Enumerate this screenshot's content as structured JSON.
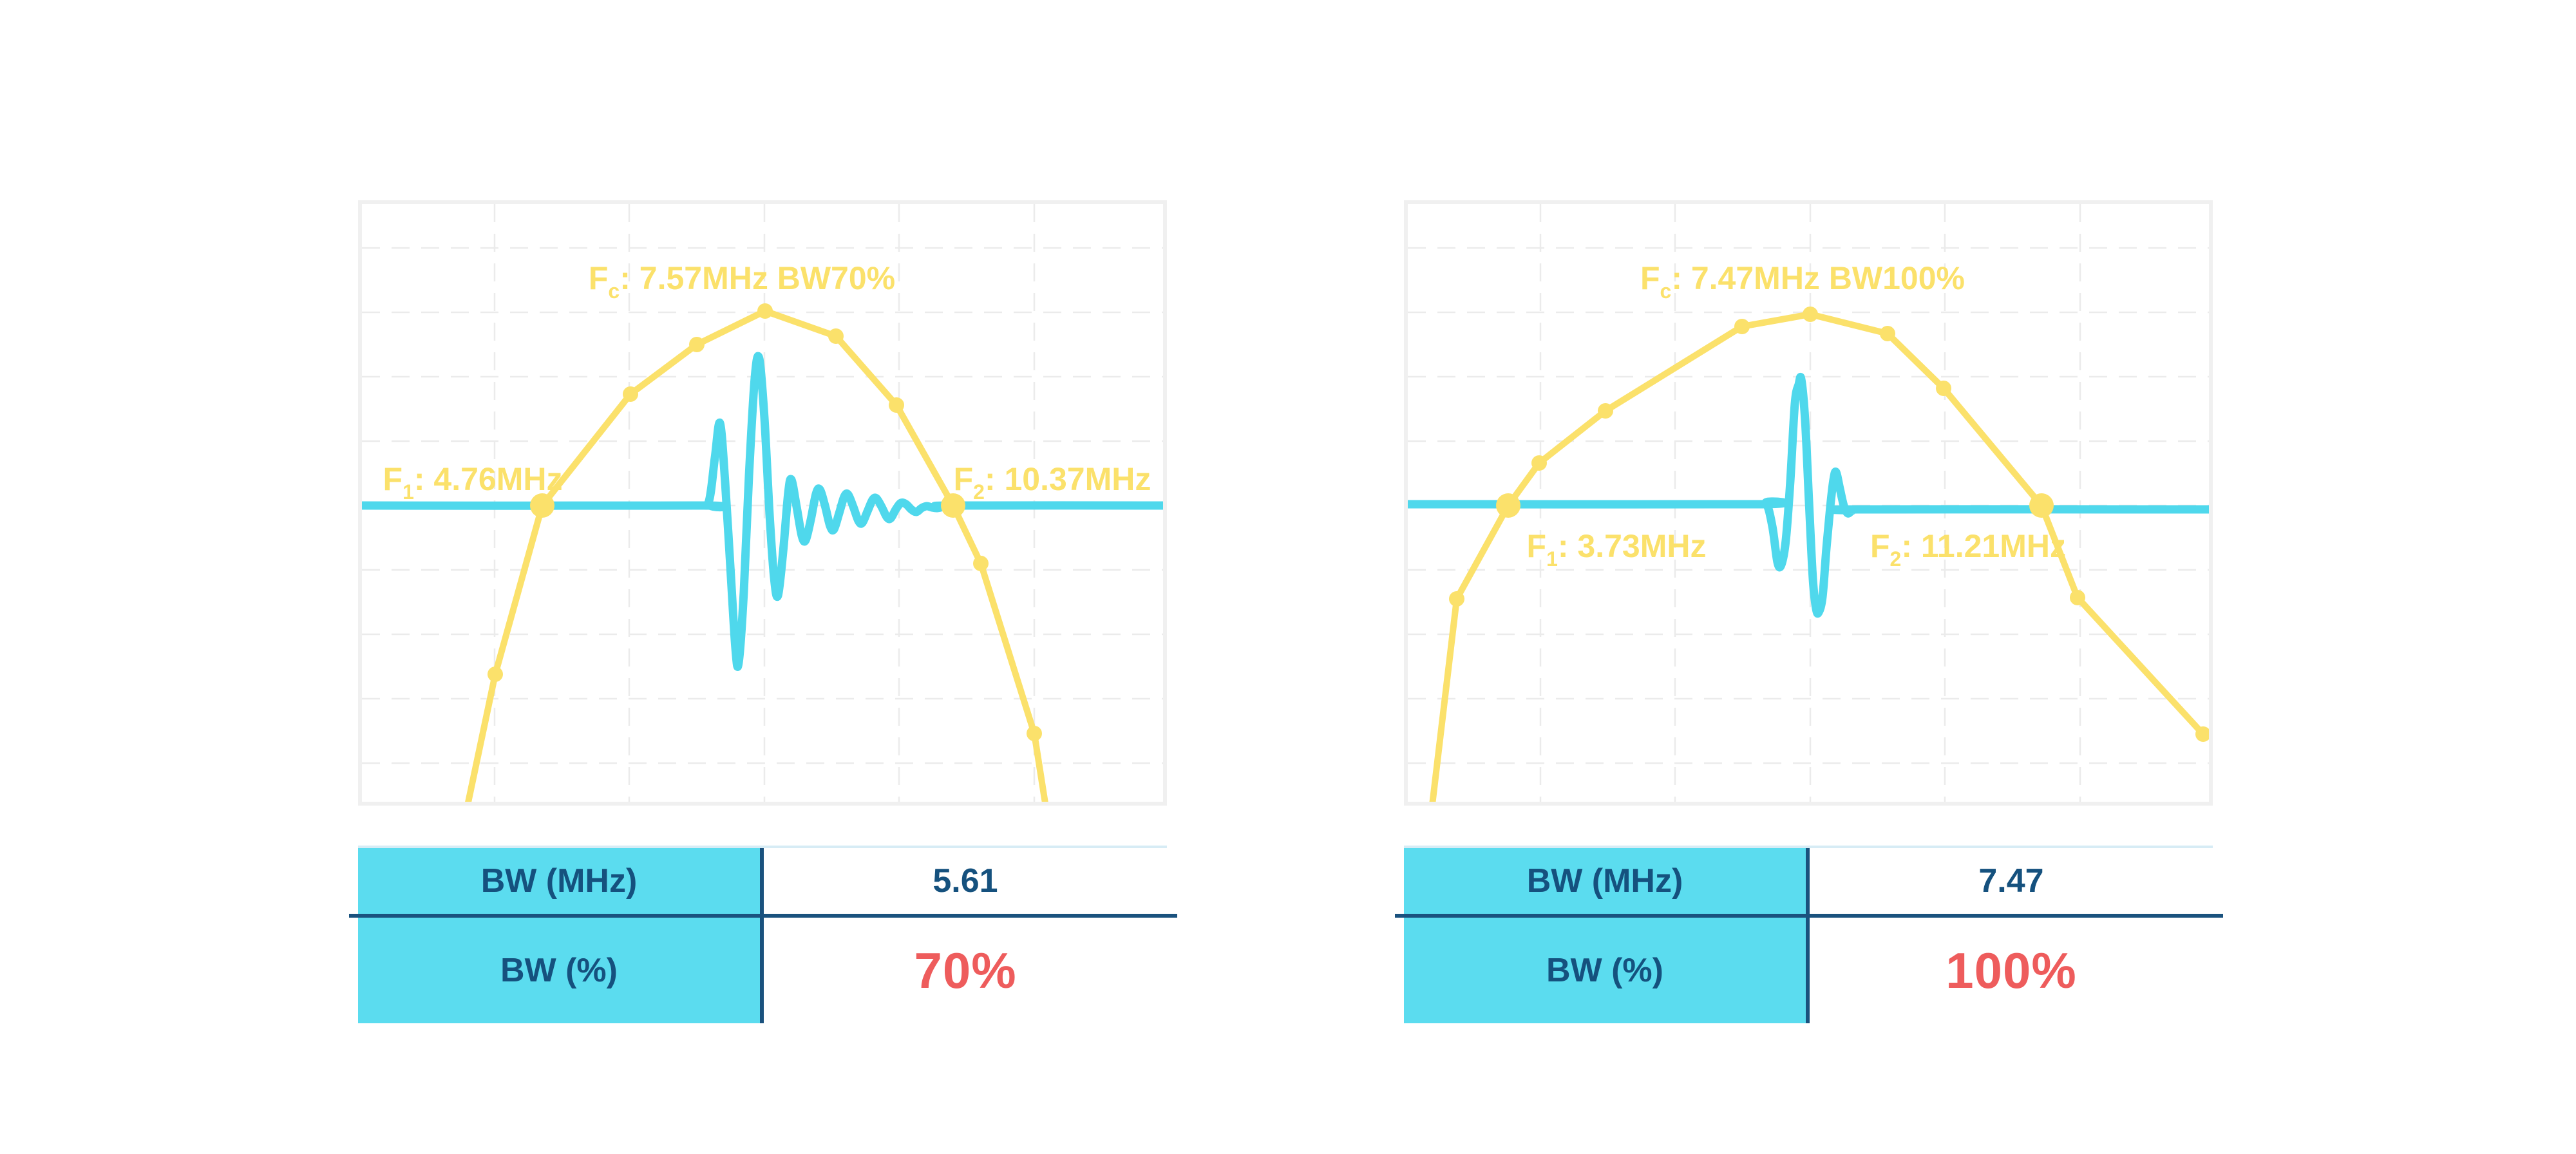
{
  "colors": {
    "yellow": "#FBE16B",
    "cyan": "#4FD8EC",
    "table_header_bg": "#5BDCEF",
    "navy_text": "#15517E",
    "navy_line": "#1A527E",
    "red": "#EE5C5C",
    "grid_gray": "#EBEBEB",
    "frame_gray": "#F0F0F0",
    "toprule_blue": "#D7ECF5"
  },
  "chart_data": [
    {
      "type": "line",
      "panel": "left",
      "title": "Fc: 7.57MHz BW70%",
      "annotations": {
        "fc_mhz": 7.57,
        "bw_percent": 70,
        "f1_mhz": 4.76,
        "f2_mhz": 10.37,
        "bw_mhz": 5.61
      },
      "labels": {
        "fc": {
          "prefix": "F",
          "sub": "c",
          "rest": ": 7.57MHz BW70%",
          "x": 590,
          "y": 132
        },
        "f1": {
          "prefix": "F",
          "sub": "1",
          "rest": ": 4.76MHz",
          "x": 172,
          "y": 444
        },
        "f2": {
          "prefix": "F",
          "sub": "2",
          "rest": ": 10.37MHz",
          "x": 1072,
          "y": 444
        }
      },
      "baseline_y": 468,
      "grid": {
        "style": "dashed",
        "v_x": [
          206,
          415,
          625,
          834,
          1044
        ],
        "h_y": [
          68,
          168,
          268,
          368,
          468,
          568,
          668,
          768,
          868
        ]
      },
      "series": [
        {
          "name": "spectrum-envelope",
          "role": "spectrum",
          "color_key": "yellow",
          "points": [
            [
              150,
              1000
            ],
            [
              207,
              730
            ],
            [
              280,
              468
            ],
            [
              417,
              295
            ],
            [
              520,
              218
            ],
            [
              626,
              166
            ],
            [
              736,
              205
            ],
            [
              830,
              312
            ],
            [
              918,
              468
            ],
            [
              961,
              558
            ],
            [
              1044,
              822
            ],
            [
              1072,
              1000
            ]
          ],
          "marker_indices": [
            1,
            2,
            3,
            4,
            5,
            6,
            7,
            8,
            9,
            10
          ],
          "big_marker_indices": [
            2,
            8
          ]
        },
        {
          "name": "pulse-waveform",
          "role": "pulse",
          "color_key": "cyan",
          "points": [
            [
              0,
              468
            ],
            [
              520,
              468
            ],
            [
              538,
              464
            ],
            [
              548,
              394
            ],
            [
              556,
              340
            ],
            [
              564,
              432
            ],
            [
              572,
              562
            ],
            [
              580,
              690
            ],
            [
              585,
              712
            ],
            [
              593,
              602
            ],
            [
              601,
              422
            ],
            [
              610,
              270
            ],
            [
              617,
              240
            ],
            [
              625,
              332
            ],
            [
              633,
              482
            ],
            [
              640,
              580
            ],
            [
              646,
              608
            ],
            [
              654,
              540
            ],
            [
              662,
              448
            ],
            [
              667,
              428
            ],
            [
              675,
              470
            ],
            [
              683,
              515
            ],
            [
              689,
              522
            ],
            [
              697,
              490
            ],
            [
              705,
              450
            ],
            [
              711,
              443
            ],
            [
              719,
              468
            ],
            [
              727,
              500
            ],
            [
              733,
              505
            ],
            [
              741,
              480
            ],
            [
              749,
              454
            ],
            [
              755,
              451
            ],
            [
              763,
              470
            ],
            [
              771,
              492
            ],
            [
              777,
              495
            ],
            [
              785,
              477
            ],
            [
              793,
              459
            ],
            [
              799,
              457
            ],
            [
              807,
              470
            ],
            [
              815,
              486
            ],
            [
              821,
              488
            ],
            [
              829,
              474
            ],
            [
              837,
              464
            ],
            [
              845,
              466
            ],
            [
              853,
              474
            ],
            [
              861,
              478
            ],
            [
              869,
              472
            ],
            [
              877,
              469
            ],
            [
              885,
              471
            ],
            [
              893,
              472
            ],
            [
              903,
              470
            ],
            [
              918,
              468
            ],
            [
              1244,
              468
            ]
          ]
        }
      ]
    },
    {
      "type": "line",
      "panel": "right",
      "title": "Fc: 7.47MHz BW100%",
      "annotations": {
        "fc_mhz": 7.47,
        "bw_percent": 100,
        "f1_mhz": 3.73,
        "f2_mhz": 11.21,
        "bw_mhz": 7.47
      },
      "labels": {
        "fc": {
          "prefix": "F",
          "sub": "c",
          "rest": ": 7.47MHz BW100%",
          "x": 613,
          "y": 132
        },
        "f1": {
          "prefix": "F",
          "sub": "1",
          "rest": ": 3.73MHz",
          "x": 324,
          "y": 548
        },
        "f2": {
          "prefix": "F",
          "sub": "2",
          "rest": ": 11.21MHz",
          "x": 870,
          "y": 548
        }
      },
      "baseline_y": 468,
      "grid": {
        "style": "dashed",
        "v_x": [
          206,
          415,
          625,
          834,
          1044
        ],
        "h_y": [
          68,
          168,
          268,
          368,
          468,
          568,
          668,
          768,
          868
        ]
      },
      "series": [
        {
          "name": "spectrum-envelope",
          "role": "spectrum",
          "color_key": "yellow",
          "points": [
            [
              30,
              1000
            ],
            [
              76,
              613
            ],
            [
              156,
              468
            ],
            [
              204,
              402
            ],
            [
              307,
              321
            ],
            [
              519,
              190
            ],
            [
              625,
              171
            ],
            [
              745,
              201
            ],
            [
              832,
              286
            ],
            [
              984,
              468
            ],
            [
              1040,
              611
            ],
            [
              1235,
              823
            ]
          ],
          "marker_indices": [
            1,
            2,
            3,
            4,
            5,
            6,
            7,
            8,
            9,
            10,
            11
          ],
          "big_marker_indices": [
            2,
            9
          ]
        },
        {
          "name": "pulse-waveform",
          "role": "pulse",
          "color_key": "cyan",
          "points": [
            [
              0,
              466
            ],
            [
              540,
              466
            ],
            [
              556,
              464
            ],
            [
              566,
              500
            ],
            [
              574,
              556
            ],
            [
              580,
              560
            ],
            [
              587,
              522
            ],
            [
              594,
              430
            ],
            [
              601,
              310
            ],
            [
              607,
              280
            ],
            [
              611,
              272
            ],
            [
              617,
              336
            ],
            [
              623,
              462
            ],
            [
              629,
              582
            ],
            [
              634,
              628
            ],
            [
              638,
              634
            ],
            [
              644,
              610
            ],
            [
              650,
              535
            ],
            [
              656,
              470
            ],
            [
              661,
              428
            ],
            [
              665,
              416
            ],
            [
              671,
              442
            ],
            [
              677,
              468
            ],
            [
              683,
              480
            ],
            [
              690,
              476
            ],
            [
              700,
              474
            ],
            [
              1244,
              474
            ]
          ]
        }
      ]
    }
  ],
  "tables": [
    {
      "rows": [
        {
          "label": "BW (MHz)",
          "value": "5.61",
          "style": "navy"
        },
        {
          "label": "BW (%)",
          "value": "70%",
          "style": "red"
        }
      ]
    },
    {
      "rows": [
        {
          "label": "BW (MHz)",
          "value": "7.47",
          "style": "navy"
        },
        {
          "label": "BW (%)",
          "value": "100%",
          "style": "red"
        }
      ]
    }
  ]
}
